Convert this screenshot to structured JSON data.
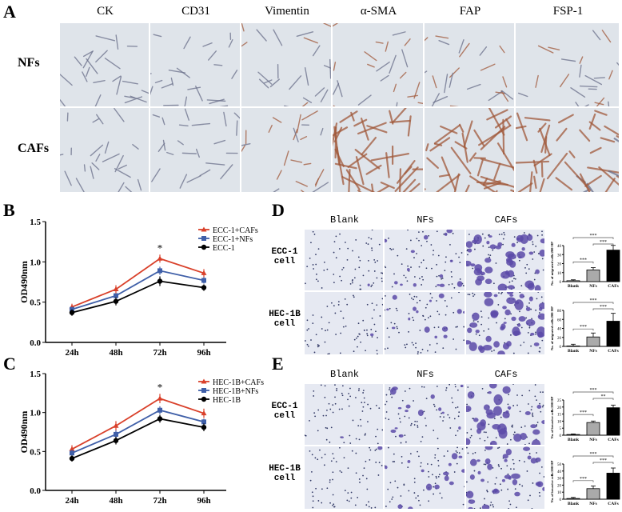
{
  "panel_labels": {
    "a": "A",
    "b": "B",
    "c": "C",
    "d": "D",
    "e": "E"
  },
  "panel_a": {
    "columns": [
      "CK",
      "CD31",
      "Vimentin",
      "α-SMA",
      "FAP",
      "FSP-1"
    ],
    "rows": [
      "NFs",
      "CAFs"
    ],
    "stain_colors": {
      "background": "#dfe4ea",
      "nuclei": "#6a6f8a",
      "positive": "#a0583a"
    }
  },
  "panel_d": {
    "columns": [
      "Blank",
      "NFs",
      "CAFs"
    ],
    "rows": [
      "ECC-1\ncell",
      "HEC-1B\ncell"
    ],
    "stain_color": "#5a4aa8"
  },
  "panel_e": {
    "columns": [
      "Blank",
      "NFs",
      "CAFs"
    ],
    "rows": [
      "ECC-1\ncell",
      "HEC-1B\ncell"
    ],
    "stain_color": "#5a4aa8"
  },
  "chart_data": [
    {
      "id": "B",
      "type": "line",
      "xlabel": "",
      "ylabel": "OD490nm",
      "categories": [
        "24h",
        "48h",
        "72h",
        "96h"
      ],
      "ylim": [
        0,
        1.5
      ],
      "yticks": [
        "0.0",
        "0.5",
        "1.0",
        "1.5"
      ],
      "legend": "top-right",
      "annotation": "*",
      "series": [
        {
          "name": "ECC-1+CAFs",
          "color": "#d9402a",
          "marker": "triangle",
          "values": [
            0.44,
            0.66,
            1.04,
            0.86
          ],
          "err": [
            0.04,
            0.05,
            0.05,
            0.05
          ]
        },
        {
          "name": "ECC-1+NFs",
          "color": "#3f5fa8",
          "marker": "square",
          "values": [
            0.41,
            0.58,
            0.89,
            0.77
          ],
          "err": [
            0.03,
            0.03,
            0.05,
            0.04
          ]
        },
        {
          "name": "ECC-1",
          "color": "#000000",
          "marker": "circle",
          "values": [
            0.37,
            0.51,
            0.76,
            0.68
          ],
          "err": [
            0.04,
            0.05,
            0.06,
            0.04
          ]
        }
      ]
    },
    {
      "id": "C",
      "type": "line",
      "xlabel": "",
      "ylabel": "OD490nm",
      "categories": [
        "24h",
        "48h",
        "72h",
        "96h"
      ],
      "ylim": [
        0,
        1.5
      ],
      "yticks": [
        "0.0",
        "0.5",
        "1.0",
        "1.5"
      ],
      "legend": "top-right",
      "annotation": "*",
      "series": [
        {
          "name": "HEC-1B+CAFs",
          "color": "#d9402a",
          "marker": "triangle",
          "values": [
            0.53,
            0.83,
            1.18,
            0.99
          ],
          "err": [
            0.05,
            0.06,
            0.06,
            0.06
          ]
        },
        {
          "name": "HEC-1B+NFs",
          "color": "#3f5fa8",
          "marker": "square",
          "values": [
            0.48,
            0.72,
            1.03,
            0.88
          ],
          "err": [
            0.04,
            0.05,
            0.05,
            0.04
          ]
        },
        {
          "name": "HEC-1B",
          "color": "#000000",
          "marker": "circle",
          "values": [
            0.41,
            0.64,
            0.92,
            0.81
          ],
          "err": [
            0.04,
            0.05,
            0.05,
            0.05
          ]
        }
      ]
    },
    {
      "id": "D1",
      "type": "bar",
      "categories": [
        "Blank",
        "NFs",
        "CAFs"
      ],
      "values": [
        1,
        13,
        35
      ],
      "ylim": [
        0,
        40
      ],
      "yticks": [
        "0",
        "10",
        "20",
        "30",
        "40"
      ],
      "ylabel": "No. of migrated cells/200 HP",
      "colors": [
        "#ffffff",
        "#aaaaaa",
        "#000000"
      ],
      "significance": [
        "***",
        "***",
        "***"
      ]
    },
    {
      "id": "D2",
      "type": "bar",
      "categories": [
        "Blank",
        "NFs",
        "CAFs"
      ],
      "values": [
        1,
        21,
        56
      ],
      "ylim": [
        0,
        80
      ],
      "yticks": [
        "0",
        "20",
        "40",
        "60",
        "80"
      ],
      "ylabel": "No. of migrated cells/200 HP",
      "colors": [
        "#ffffff",
        "#aaaaaa",
        "#000000"
      ],
      "significance": [
        "***",
        "***",
        "***"
      ]
    },
    {
      "id": "E1",
      "type": "bar",
      "categories": [
        "Blank",
        "NFs",
        "CAFs"
      ],
      "values": [
        0.5,
        9,
        19.5
      ],
      "ylim": [
        0,
        25
      ],
      "yticks": [
        "0",
        "5",
        "10",
        "15",
        "20",
        "25"
      ],
      "ylabel": "No. of invasive cells/200 HP",
      "colors": [
        "#ffffff",
        "#aaaaaa",
        "#000000"
      ],
      "significance": [
        "***",
        "**",
        "***"
      ]
    },
    {
      "id": "E2",
      "type": "bar",
      "categories": [
        "Blank",
        "NFs",
        "CAFs"
      ],
      "values": [
        1,
        15,
        37
      ],
      "ylim": [
        0,
        50
      ],
      "yticks": [
        "0",
        "10",
        "20",
        "30",
        "40",
        "50"
      ],
      "ylabel": "No. of invasive cells/200 HP",
      "colors": [
        "#ffffff",
        "#aaaaaa",
        "#000000"
      ],
      "significance": [
        "***",
        "***",
        "***"
      ]
    }
  ]
}
